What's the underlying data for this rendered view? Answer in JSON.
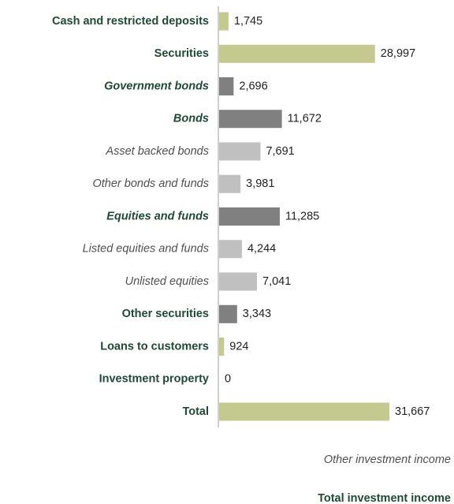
{
  "chart_data": {
    "type": "bar",
    "orientation": "horizontal",
    "categories": [
      "Cash and restricted deposits",
      "Securities",
      "Government bonds",
      "Bonds",
      "Asset backed bonds",
      "Other bonds and funds",
      "Equities and funds",
      "Listed equities and funds",
      "Unlisted equities",
      "Other securities",
      "Loans to customers",
      "Investment property",
      "Total"
    ],
    "values": [
      1745,
      28997,
      2696,
      11672,
      7691,
      3981,
      11285,
      4244,
      7041,
      3343,
      924,
      0,
      31667
    ],
    "value_labels": [
      "1,745",
      "28,997",
      "2,696",
      "11,672",
      "7,691",
      "3,981",
      "11,285",
      "4,244",
      "7,041",
      "3,343",
      "924",
      "0",
      "31,667"
    ],
    "colors": [
      "#c3c98f",
      "#c3c98f",
      "#808080",
      "#808080",
      "#c0c0c0",
      "#c0c0c0",
      "#808080",
      "#c0c0c0",
      "#c0c0c0",
      "#808080",
      "#c3c98f",
      "#c3c98f",
      "#c3c98f"
    ],
    "label_styles": [
      "bold",
      "bold",
      "bold-italic",
      "bold-italic",
      "italic",
      "italic",
      "bold-italic",
      "italic",
      "italic",
      "bold",
      "bold",
      "bold",
      "bold"
    ],
    "annotations": [
      "Other investment income",
      "Total investment income"
    ]
  }
}
